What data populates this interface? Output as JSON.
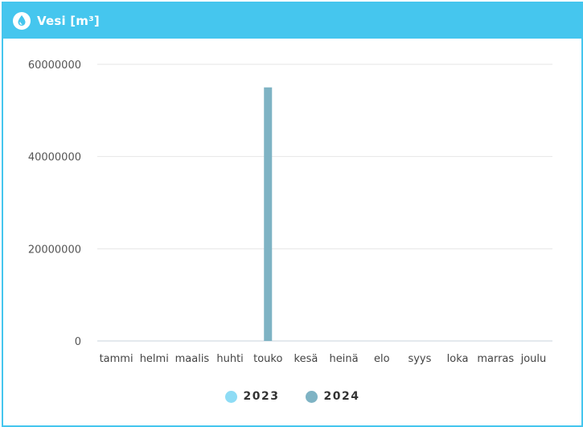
{
  "card": {
    "title": "Vesi [m³]",
    "icon": "water-drop-icon",
    "header_color": "#45c6ee"
  },
  "chart_data": {
    "type": "bar",
    "title": "Vesi [m³]",
    "categories": [
      "tammi",
      "helmi",
      "maalis",
      "huhti",
      "touko",
      "kesä",
      "heinä",
      "elo",
      "syys",
      "loka",
      "marras",
      "joulu"
    ],
    "series": [
      {
        "name": "2023",
        "color": "#8edcf5",
        "values": [
          0,
          0,
          0,
          0,
          0,
          0,
          0,
          0,
          0,
          0,
          0,
          0
        ]
      },
      {
        "name": "2024",
        "color": "#7eb3c4",
        "values": [
          0,
          0,
          0,
          0,
          55000000,
          0,
          0,
          0,
          0,
          0,
          0,
          0
        ]
      }
    ],
    "ylim": [
      0,
      60000000
    ],
    "yticks": [
      0,
      20000000,
      40000000,
      60000000
    ],
    "ytick_labels": [
      "0",
      "20000000",
      "40000000",
      "60000000"
    ],
    "xlabel": "",
    "ylabel": "",
    "grid": true,
    "legend_position": "bottom-center"
  }
}
